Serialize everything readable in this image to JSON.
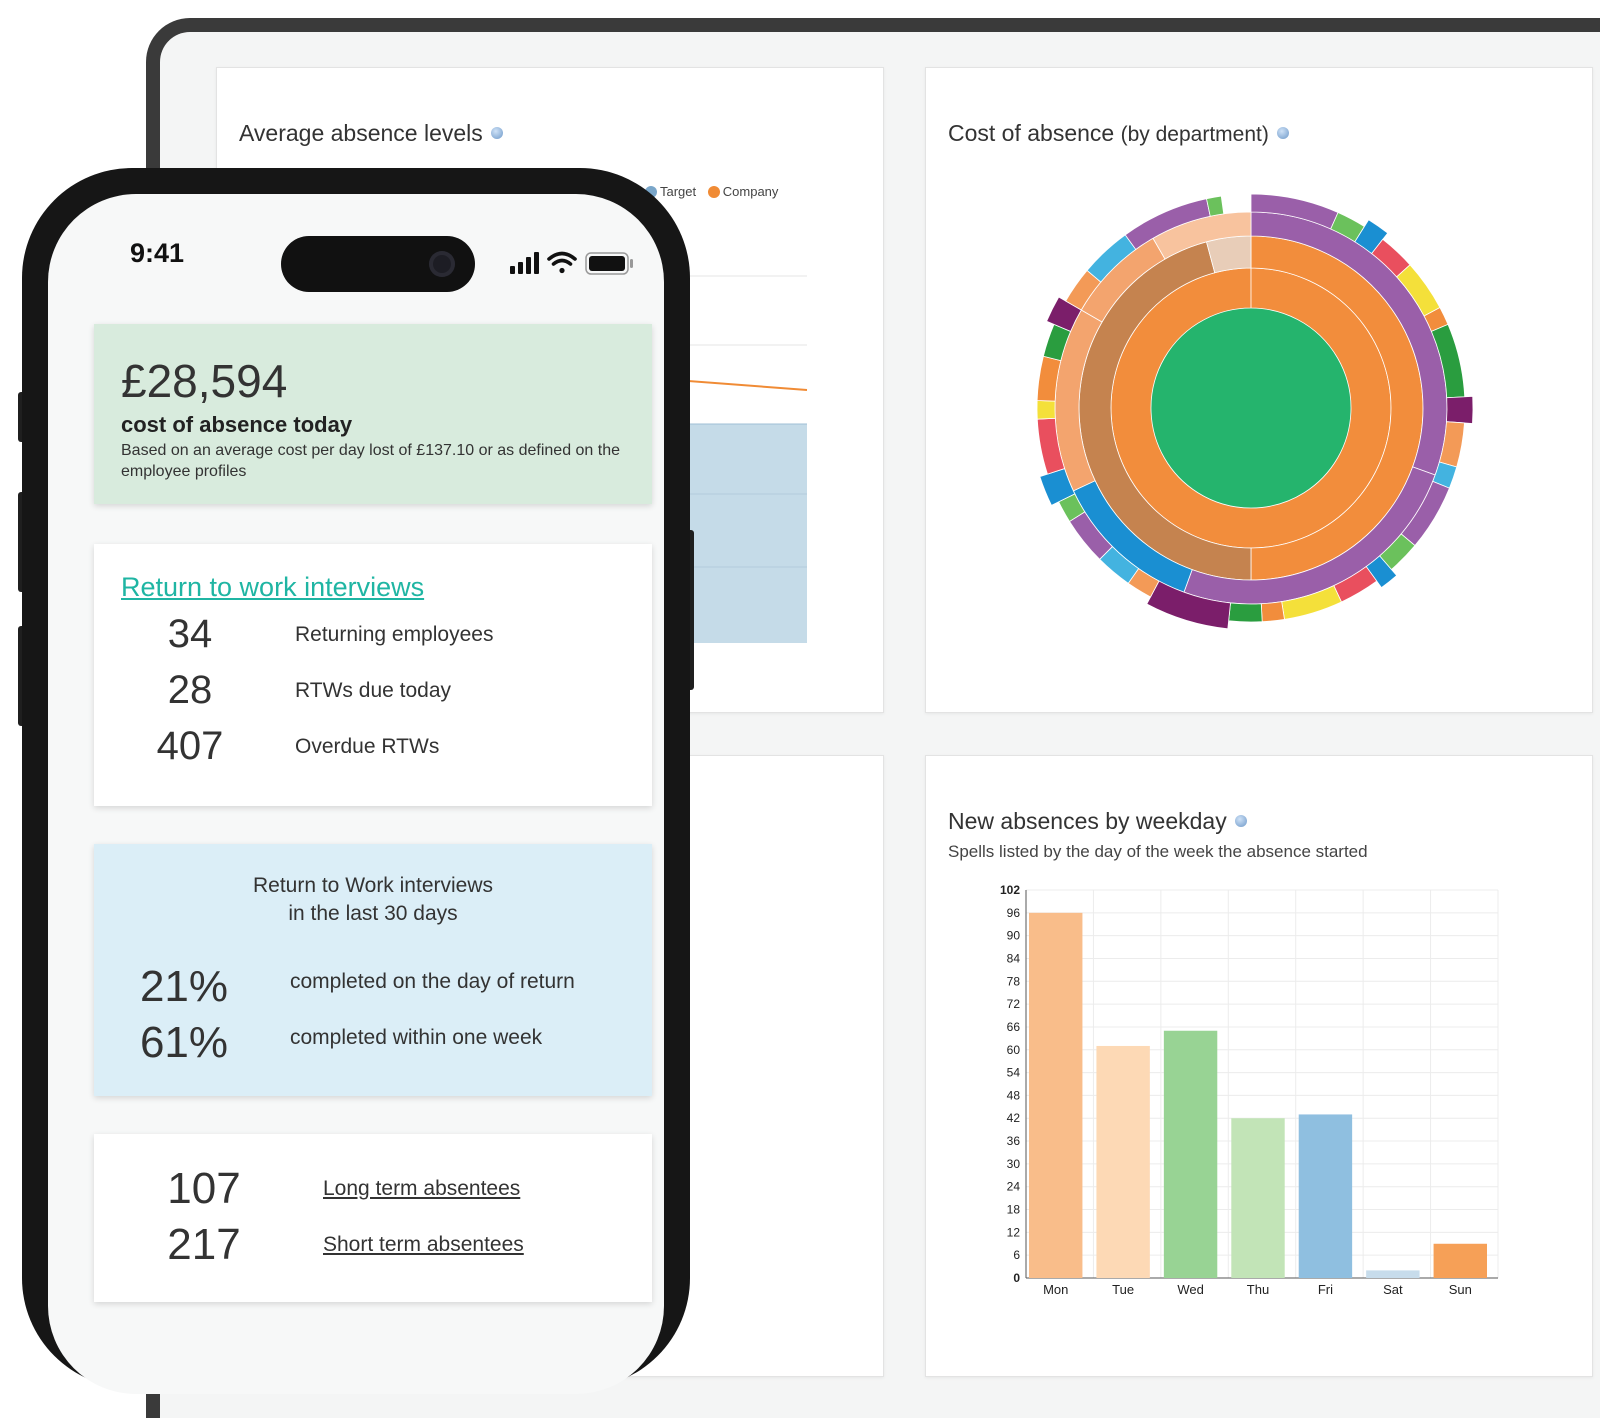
{
  "dashboard": {
    "avg_absence": {
      "title": "Average absence levels",
      "legend": [
        "Target",
        "Company"
      ],
      "colors": {
        "company": "#f08b35",
        "target_fill": "#c5dbe8"
      }
    },
    "cost_absence": {
      "title": "Cost of absence",
      "title_suffix": "(by department)"
    },
    "weekday": {
      "title": "New absences by weekday",
      "subtitle": "Spells listed by the day of the week the absence started"
    }
  },
  "chart_data": {
    "type": "bar",
    "title": "New absences by weekday",
    "subtitle": "Spells listed by the day of the week the absence started",
    "categories": [
      "Mon",
      "Tue",
      "Wed",
      "Thu",
      "Fri",
      "Sat",
      "Sun"
    ],
    "values": [
      96,
      61,
      65,
      42,
      43,
      2,
      9
    ],
    "colors": [
      "#f9bd8a",
      "#fdd9b5",
      "#98d394",
      "#c2e4b7",
      "#8fbfe0",
      "#c7dceb",
      "#f6a057"
    ],
    "yticks": [
      0,
      6,
      12,
      18,
      24,
      30,
      36,
      42,
      48,
      54,
      60,
      66,
      72,
      78,
      84,
      90,
      96,
      102
    ],
    "ylim": [
      0,
      102
    ],
    "grid": true
  },
  "phone": {
    "status": {
      "time": "9:41"
    },
    "cost": {
      "amount": "£28,594",
      "label": "cost of absence today",
      "note": "Based on an average cost per day lost of £137.10 or as defined on the employee profiles"
    },
    "rtw": {
      "title": "Return to work interviews",
      "rows": [
        {
          "value": "34",
          "label": "Returning employees"
        },
        {
          "value": "28",
          "label": "RTWs due today"
        },
        {
          "value": "407",
          "label": "Overdue RTWs"
        }
      ]
    },
    "rtw30": {
      "title_line1": "Return to Work interviews",
      "title_line2": "in the last 30 days",
      "rows": [
        {
          "value": "21%",
          "label": "completed on the day of return"
        },
        {
          "value": "61%",
          "label": "completed within one week"
        }
      ]
    },
    "absentees": {
      "rows": [
        {
          "value": "107",
          "label": "Long term absentees"
        },
        {
          "value": "217",
          "label": "Short term absentees"
        }
      ]
    }
  }
}
